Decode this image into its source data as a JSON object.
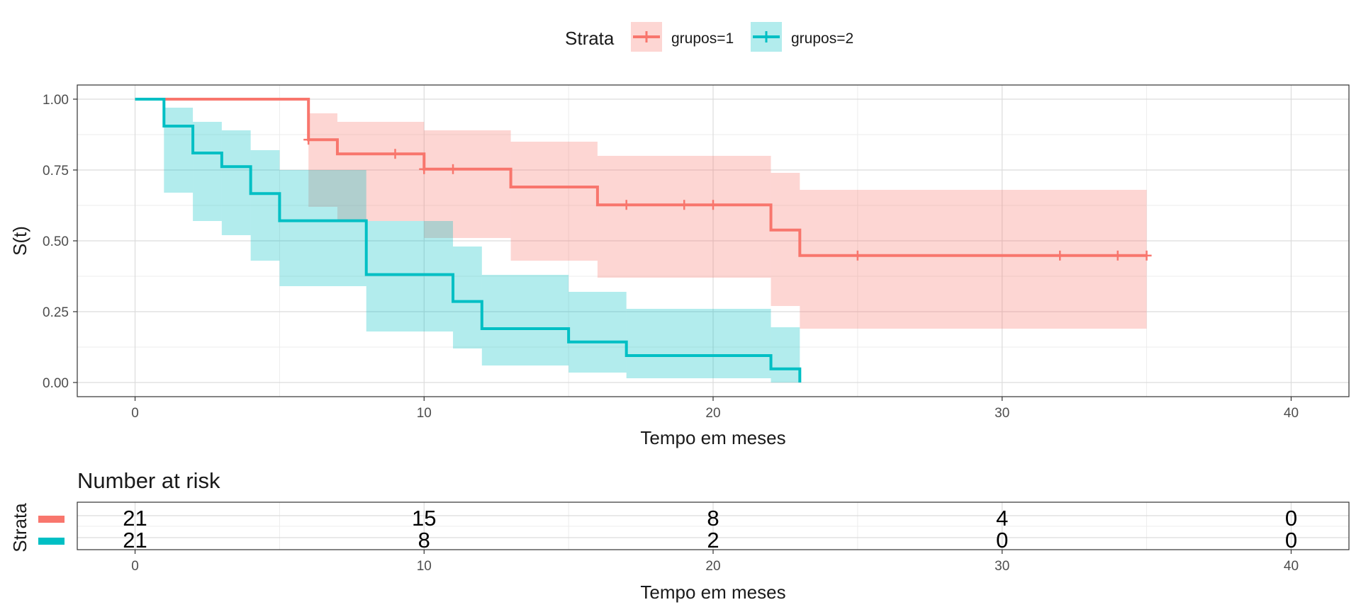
{
  "chart_data": {
    "type": "line",
    "subtype": "kaplan-meier",
    "legend": {
      "title": "Strata",
      "placement": "top",
      "entries": [
        "grupos=1",
        "grupos=2"
      ]
    },
    "xlabel": "Tempo em meses",
    "ylabel": "S(t)",
    "xlim": [
      -2,
      42
    ],
    "ylim": [
      -0.05,
      1.05
    ],
    "x_ticks": [
      0,
      10,
      20,
      30,
      40
    ],
    "y_ticks": [
      0,
      0.25,
      0.5,
      0.75,
      1.0
    ],
    "y_tick_labels": [
      "0.00",
      "0.25",
      "0.50",
      "0.75",
      "1.00"
    ],
    "x_tick_labels": [
      "0",
      "10",
      "20",
      "30",
      "40"
    ],
    "grid": true,
    "series": [
      {
        "name": "grupos=1",
        "color": "#F8766D",
        "steps": [
          {
            "t": 0,
            "s": 1.0,
            "lo": 1.0,
            "hi": 1.0
          },
          {
            "t": 6,
            "s": 0.857,
            "lo": 0.62,
            "hi": 0.95
          },
          {
            "t": 7,
            "s": 0.807,
            "lo": 0.57,
            "hi": 0.92
          },
          {
            "t": 10,
            "s": 0.753,
            "lo": 0.51,
            "hi": 0.89
          },
          {
            "t": 13,
            "s": 0.69,
            "lo": 0.43,
            "hi": 0.85
          },
          {
            "t": 16,
            "s": 0.627,
            "lo": 0.37,
            "hi": 0.8
          },
          {
            "t": 22,
            "s": 0.538,
            "lo": 0.27,
            "hi": 0.74
          },
          {
            "t": 23,
            "s": 0.448,
            "lo": 0.19,
            "hi": 0.68
          }
        ],
        "end_t": 35,
        "censored": [
          6,
          9,
          10,
          11,
          17,
          19,
          20,
          25,
          32,
          34,
          35
        ]
      },
      {
        "name": "grupos=2",
        "color": "#00BFC4",
        "steps": [
          {
            "t": 0,
            "s": 1.0,
            "lo": 1.0,
            "hi": 1.0
          },
          {
            "t": 1,
            "s": 0.905,
            "lo": 0.67,
            "hi": 0.97
          },
          {
            "t": 2,
            "s": 0.81,
            "lo": 0.57,
            "hi": 0.92
          },
          {
            "t": 3,
            "s": 0.762,
            "lo": 0.52,
            "hi": 0.89
          },
          {
            "t": 4,
            "s": 0.667,
            "lo": 0.43,
            "hi": 0.82
          },
          {
            "t": 5,
            "s": 0.571,
            "lo": 0.34,
            "hi": 0.75
          },
          {
            "t": 8,
            "s": 0.381,
            "lo": 0.18,
            "hi": 0.57
          },
          {
            "t": 11,
            "s": 0.286,
            "lo": 0.12,
            "hi": 0.48
          },
          {
            "t": 12,
            "s": 0.19,
            "lo": 0.06,
            "hi": 0.38
          },
          {
            "t": 15,
            "s": 0.143,
            "lo": 0.035,
            "hi": 0.32
          },
          {
            "t": 17,
            "s": 0.095,
            "lo": 0.015,
            "hi": 0.26
          },
          {
            "t": 22,
            "s": 0.048,
            "lo": 0.0,
            "hi": 0.195
          },
          {
            "t": 23,
            "s": 0.0,
            "lo": 0.0,
            "hi": 0.0
          }
        ],
        "end_t": 23,
        "censored": []
      }
    ],
    "risk_table": {
      "title": "Number at risk",
      "ylabel": "Strata",
      "xlabel": "Tempo em meses",
      "times": [
        0,
        10,
        20,
        30,
        40
      ],
      "rows": [
        {
          "name": "grupos=1",
          "color": "#F8766D",
          "values": [
            "21",
            "15",
            "8",
            "4",
            "0"
          ]
        },
        {
          "name": "grupos=2",
          "color": "#00BFC4",
          "values": [
            "21",
            "8",
            "2",
            "0",
            "0"
          ]
        }
      ]
    }
  }
}
